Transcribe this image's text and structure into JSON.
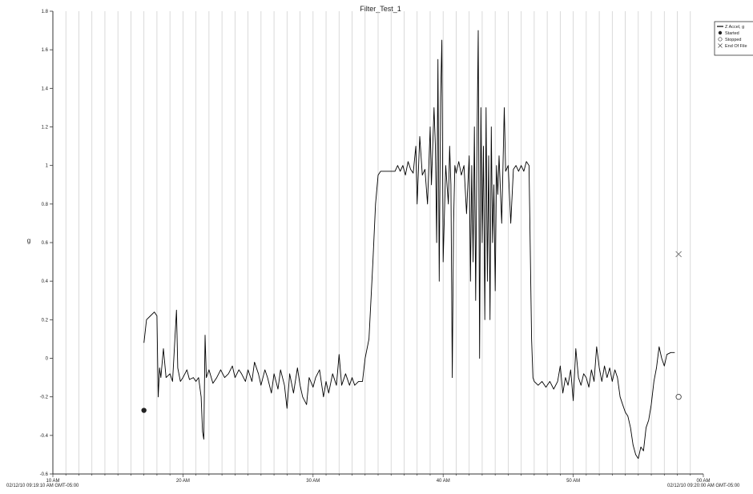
{
  "chart_data": {
    "type": "line",
    "title": "Filter_Test_1",
    "ylabel": "g",
    "xlabel": "",
    "ylim": [
      -0.6,
      1.8
    ],
    "xlim": [
      10,
      60
    ],
    "y_ticks": [
      "-0.6",
      "-0.4",
      "-0.2",
      "0",
      "0.2",
      "0.4",
      "0.6",
      "0.8",
      "1",
      "1.2",
      "1.4",
      "1.6",
      "1.8"
    ],
    "x_ticks": [
      {
        "x": 10,
        "label": "10 AM"
      },
      {
        "x": 20,
        "label": "20 AM"
      },
      {
        "x": 30,
        "label": "30 AM"
      },
      {
        "x": 40,
        "label": "40 AM"
      },
      {
        "x": 50,
        "label": "50 AM"
      },
      {
        "x": 60,
        "label": "00 AM"
      }
    ],
    "x_start_label": "02/12/10 09:19:10 AM GMT-05:00",
    "x_end_label": "02/12/10 09:20:00 AM GMT-05:00",
    "grid": "vertical",
    "legend_position": "top-right",
    "legend": [
      {
        "label": "Z Accel, g",
        "marker": "line"
      },
      {
        "label": "Started",
        "marker": "filled-circle"
      },
      {
        "label": "Stopped",
        "marker": "open-circle"
      },
      {
        "label": "End Of File",
        "marker": "x"
      }
    ],
    "series": [
      {
        "name": "Z Accel, g",
        "color": "#000000",
        "points": [
          [
            17.0,
            0.08
          ],
          [
            17.2,
            0.2
          ],
          [
            17.5,
            0.22
          ],
          [
            17.8,
            0.24
          ],
          [
            18.0,
            0.22
          ],
          [
            18.1,
            -0.2
          ],
          [
            18.2,
            -0.05
          ],
          [
            18.3,
            -0.1
          ],
          [
            18.5,
            0.05
          ],
          [
            18.7,
            -0.1
          ],
          [
            19.0,
            -0.08
          ],
          [
            19.2,
            -0.12
          ],
          [
            19.3,
            0.0
          ],
          [
            19.5,
            0.25
          ],
          [
            19.6,
            -0.05
          ],
          [
            19.8,
            -0.12
          ],
          [
            20.0,
            -0.1
          ],
          [
            20.3,
            -0.06
          ],
          [
            20.5,
            -0.11
          ],
          [
            20.8,
            -0.1
          ],
          [
            21.0,
            -0.12
          ],
          [
            21.2,
            -0.1
          ],
          [
            21.4,
            -0.2
          ],
          [
            21.5,
            -0.38
          ],
          [
            21.6,
            -0.42
          ],
          [
            21.7,
            0.12
          ],
          [
            21.8,
            -0.1
          ],
          [
            22.0,
            -0.06
          ],
          [
            22.3,
            -0.13
          ],
          [
            22.6,
            -0.1
          ],
          [
            22.9,
            -0.06
          ],
          [
            23.2,
            -0.1
          ],
          [
            23.5,
            -0.08
          ],
          [
            23.8,
            -0.04
          ],
          [
            24.0,
            -0.1
          ],
          [
            24.3,
            -0.06
          ],
          [
            24.5,
            -0.08
          ],
          [
            24.8,
            -0.12
          ],
          [
            25.0,
            -0.06
          ],
          [
            25.3,
            -0.12
          ],
          [
            25.5,
            -0.02
          ],
          [
            25.8,
            -0.08
          ],
          [
            26.0,
            -0.14
          ],
          [
            26.3,
            -0.06
          ],
          [
            26.5,
            -0.1
          ],
          [
            26.8,
            -0.18
          ],
          [
            27.0,
            -0.08
          ],
          [
            27.3,
            -0.16
          ],
          [
            27.5,
            -0.06
          ],
          [
            27.8,
            -0.14
          ],
          [
            28.0,
            -0.26
          ],
          [
            28.2,
            -0.08
          ],
          [
            28.5,
            -0.18
          ],
          [
            28.8,
            -0.05
          ],
          [
            29.0,
            -0.14
          ],
          [
            29.2,
            -0.2
          ],
          [
            29.5,
            -0.24
          ],
          [
            29.7,
            -0.1
          ],
          [
            30.0,
            -0.15
          ],
          [
            30.2,
            -0.1
          ],
          [
            30.5,
            -0.06
          ],
          [
            30.8,
            -0.2
          ],
          [
            31.0,
            -0.12
          ],
          [
            31.2,
            -0.18
          ],
          [
            31.5,
            -0.08
          ],
          [
            31.8,
            -0.14
          ],
          [
            32.0,
            0.02
          ],
          [
            32.2,
            -0.14
          ],
          [
            32.5,
            -0.08
          ],
          [
            32.8,
            -0.14
          ],
          [
            33.0,
            -0.1
          ],
          [
            33.2,
            -0.14
          ],
          [
            33.5,
            -0.12
          ],
          [
            33.8,
            -0.12
          ],
          [
            34.0,
            0.0
          ],
          [
            34.3,
            0.1
          ],
          [
            34.6,
            0.5
          ],
          [
            34.8,
            0.8
          ],
          [
            35.0,
            0.95
          ],
          [
            35.2,
            0.97
          ],
          [
            35.5,
            0.97
          ],
          [
            36.0,
            0.97
          ],
          [
            36.3,
            0.97
          ],
          [
            36.5,
            1.0
          ],
          [
            36.7,
            0.97
          ],
          [
            36.9,
            1.0
          ],
          [
            37.1,
            0.95
          ],
          [
            37.3,
            1.02
          ],
          [
            37.5,
            0.98
          ],
          [
            37.7,
            0.96
          ],
          [
            37.9,
            1.1
          ],
          [
            38.0,
            0.8
          ],
          [
            38.2,
            1.15
          ],
          [
            38.4,
            0.95
          ],
          [
            38.6,
            0.98
          ],
          [
            38.8,
            0.8
          ],
          [
            39.0,
            1.2
          ],
          [
            39.1,
            0.9
          ],
          [
            39.3,
            1.3
          ],
          [
            39.4,
            1.1
          ],
          [
            39.5,
            0.6
          ],
          [
            39.6,
            1.55
          ],
          [
            39.7,
            0.4
          ],
          [
            39.8,
            1.35
          ],
          [
            39.9,
            1.65
          ],
          [
            40.0,
            0.5
          ],
          [
            40.2,
            1.0
          ],
          [
            40.4,
            0.8
          ],
          [
            40.5,
            1.1
          ],
          [
            40.6,
            0.9
          ],
          [
            40.7,
            -0.1
          ],
          [
            40.8,
            0.7
          ],
          [
            40.9,
            1.0
          ],
          [
            41.0,
            0.96
          ],
          [
            41.2,
            1.02
          ],
          [
            41.4,
            0.95
          ],
          [
            41.6,
            1.0
          ],
          [
            41.8,
            0.75
          ],
          [
            42.0,
            1.05
          ],
          [
            42.1,
            0.4
          ],
          [
            42.2,
            1.0
          ],
          [
            42.3,
            0.5
          ],
          [
            42.4,
            1.2
          ],
          [
            42.5,
            0.3
          ],
          [
            42.6,
            1.1
          ],
          [
            42.7,
            1.7
          ],
          [
            42.8,
            0.0
          ],
          [
            42.9,
            1.3
          ],
          [
            43.0,
            0.6
          ],
          [
            43.1,
            1.1
          ],
          [
            43.2,
            0.2
          ],
          [
            43.3,
            1.3
          ],
          [
            43.4,
            0.4
          ],
          [
            43.5,
            1.05
          ],
          [
            43.6,
            0.2
          ],
          [
            43.7,
            1.2
          ],
          [
            43.8,
            0.6
          ],
          [
            43.9,
            0.9
          ],
          [
            44.0,
            0.35
          ],
          [
            44.1,
            1.0
          ],
          [
            44.2,
            0.85
          ],
          [
            44.3,
            1.05
          ],
          [
            44.5,
            0.7
          ],
          [
            44.6,
            1.0
          ],
          [
            44.7,
            1.3
          ],
          [
            44.8,
            0.97
          ],
          [
            45.0,
            1.0
          ],
          [
            45.2,
            0.7
          ],
          [
            45.4,
            0.98
          ],
          [
            45.6,
            1.0
          ],
          [
            45.8,
            0.97
          ],
          [
            46.0,
            1.0
          ],
          [
            46.2,
            0.97
          ],
          [
            46.4,
            1.02
          ],
          [
            46.6,
            1.0
          ],
          [
            46.8,
            0.1
          ],
          [
            46.9,
            -0.1
          ],
          [
            47.0,
            -0.12
          ],
          [
            47.3,
            -0.14
          ],
          [
            47.6,
            -0.12
          ],
          [
            47.9,
            -0.15
          ],
          [
            48.2,
            -0.12
          ],
          [
            48.5,
            -0.16
          ],
          [
            48.8,
            -0.12
          ],
          [
            49.0,
            -0.04
          ],
          [
            49.2,
            -0.18
          ],
          [
            49.4,
            -0.1
          ],
          [
            49.6,
            -0.14
          ],
          [
            49.8,
            -0.06
          ],
          [
            50.0,
            -0.22
          ],
          [
            50.2,
            0.05
          ],
          [
            50.4,
            -0.1
          ],
          [
            50.6,
            -0.14
          ],
          [
            50.8,
            -0.08
          ],
          [
            51.0,
            -0.1
          ],
          [
            51.2,
            -0.15
          ],
          [
            51.4,
            -0.06
          ],
          [
            51.6,
            -0.12
          ],
          [
            51.8,
            0.06
          ],
          [
            52.0,
            -0.05
          ],
          [
            52.2,
            -0.12
          ],
          [
            52.4,
            -0.04
          ],
          [
            52.6,
            -0.1
          ],
          [
            52.8,
            -0.05
          ],
          [
            53.0,
            -0.12
          ],
          [
            53.2,
            -0.06
          ],
          [
            53.4,
            -0.1
          ],
          [
            53.6,
            -0.2
          ],
          [
            53.8,
            -0.24
          ],
          [
            54.0,
            -0.28
          ],
          [
            54.2,
            -0.3
          ],
          [
            54.4,
            -0.36
          ],
          [
            54.6,
            -0.45
          ],
          [
            54.8,
            -0.5
          ],
          [
            55.0,
            -0.52
          ],
          [
            55.2,
            -0.46
          ],
          [
            55.4,
            -0.48
          ],
          [
            55.6,
            -0.36
          ],
          [
            55.8,
            -0.32
          ],
          [
            56.0,
            -0.24
          ],
          [
            56.2,
            -0.12
          ],
          [
            56.4,
            -0.05
          ],
          [
            56.6,
            0.06
          ],
          [
            56.8,
            0.0
          ],
          [
            57.0,
            -0.04
          ],
          [
            57.2,
            0.02
          ],
          [
            57.5,
            0.03
          ],
          [
            57.8,
            0.03
          ]
        ]
      }
    ],
    "markers": [
      {
        "name": "Started",
        "x": 17.0,
        "y": -0.27,
        "symbol": "filled-circle"
      },
      {
        "name": "Stopped",
        "x": 58.1,
        "y": -0.2,
        "symbol": "open-circle"
      },
      {
        "name": "End Of File",
        "x": 58.1,
        "y": 0.54,
        "symbol": "x"
      }
    ]
  }
}
